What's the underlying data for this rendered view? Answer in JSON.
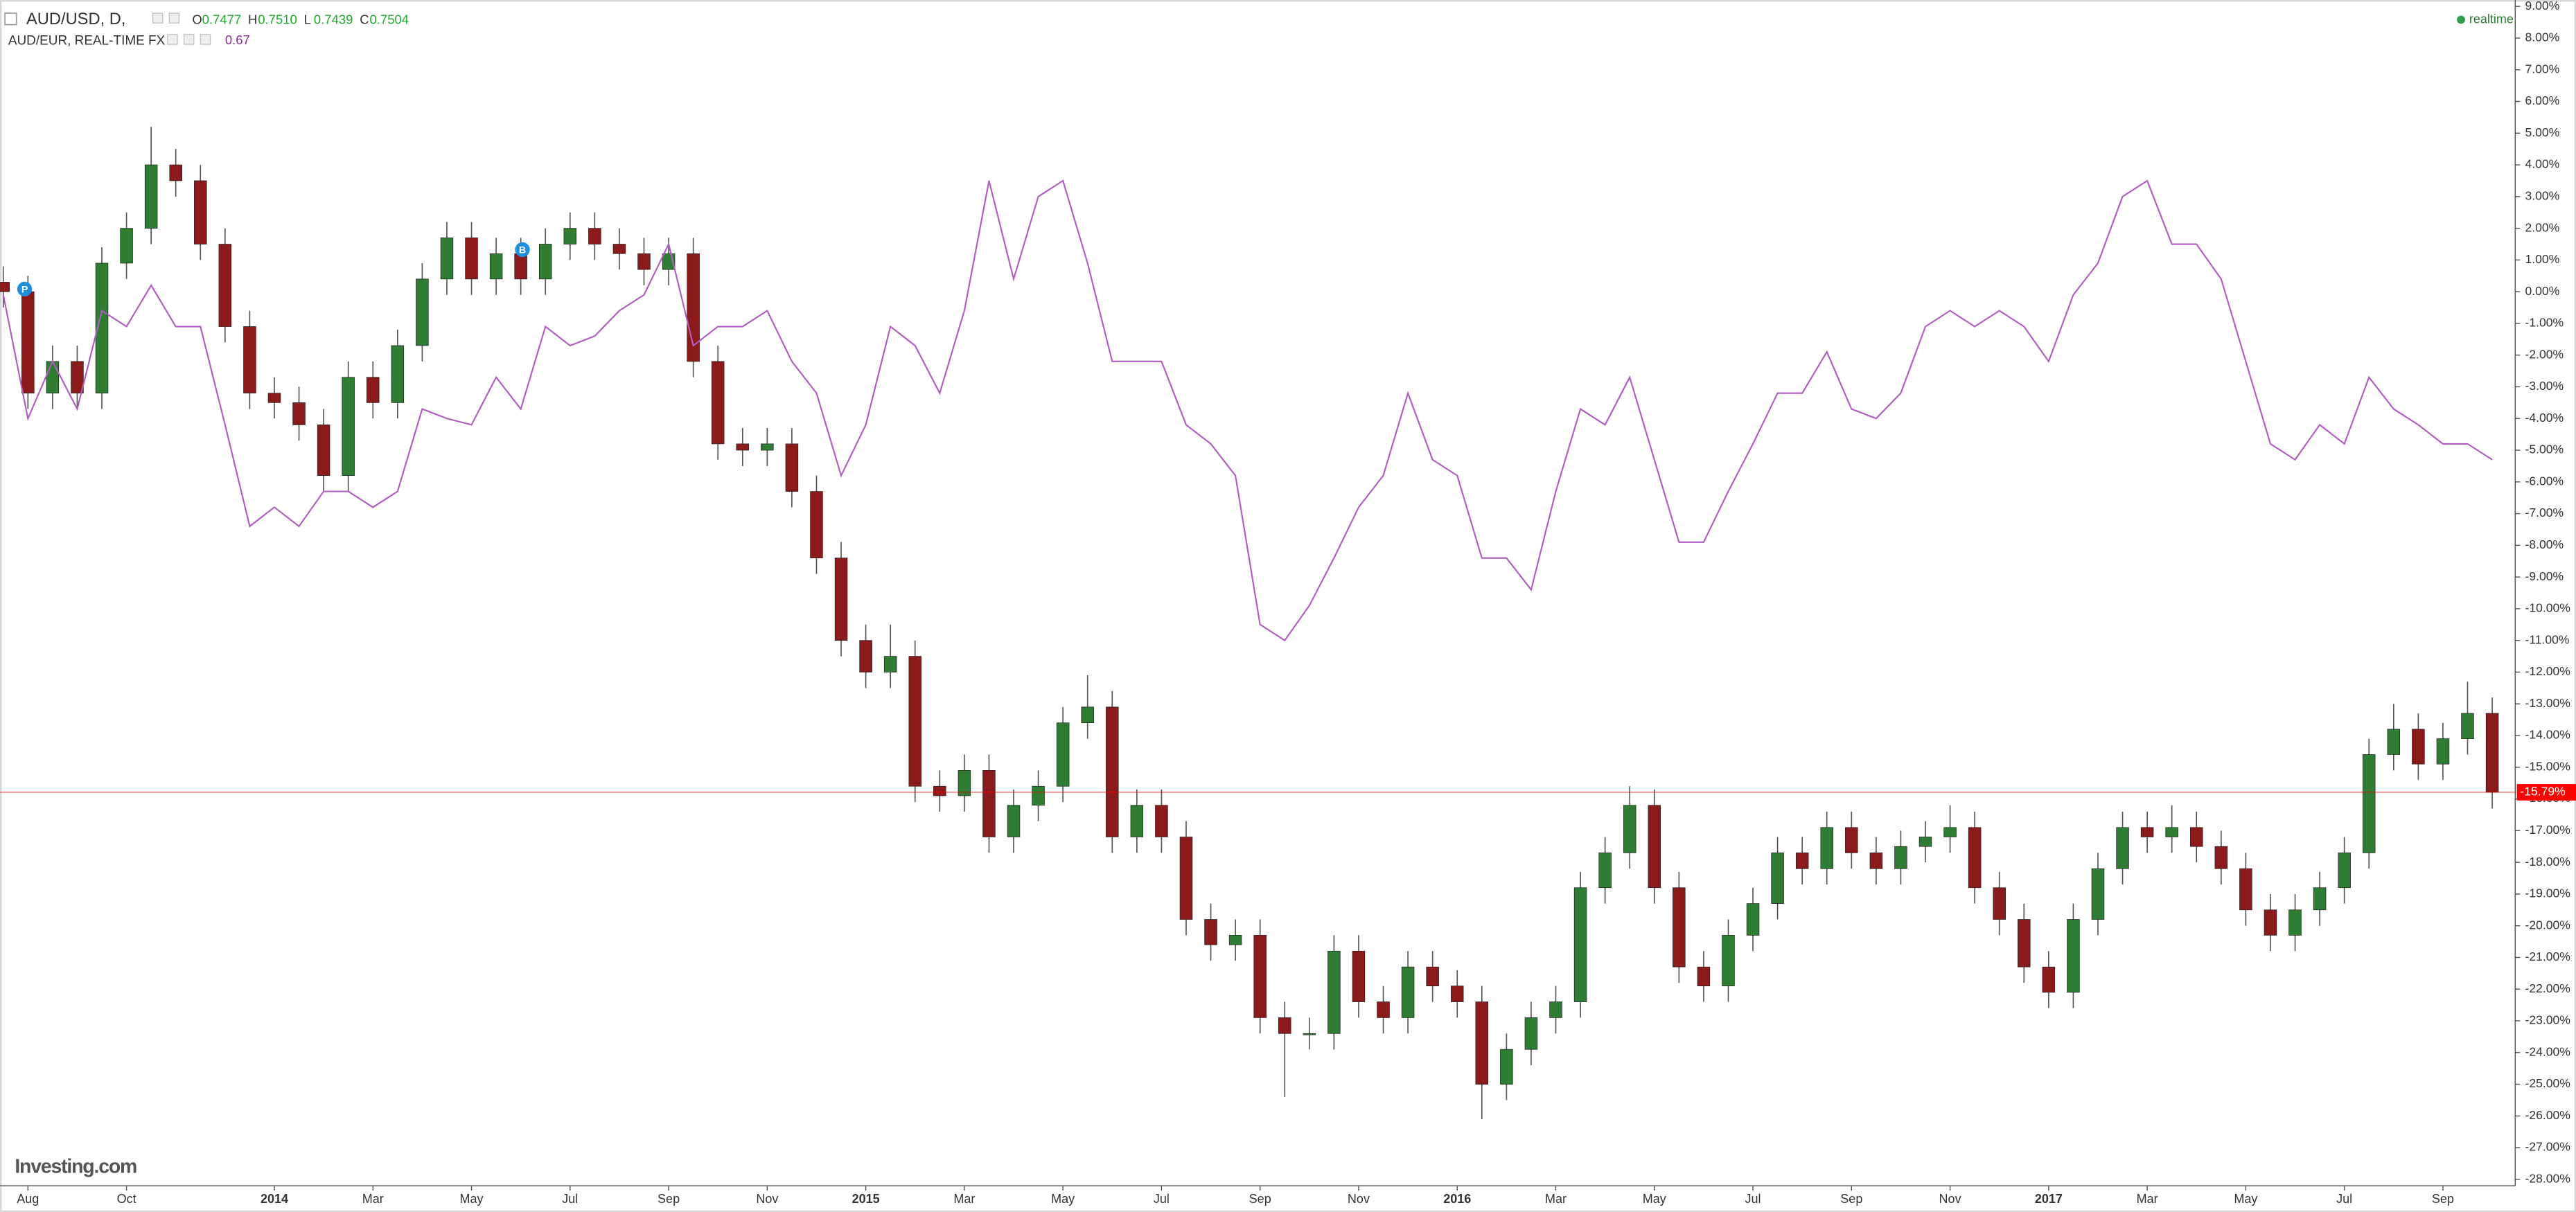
{
  "chart_data": {
    "type": "candlestick",
    "symbol_title": "AUD/USD, D,",
    "quote": [
      {
        "key": "O",
        "price": 0.7477
      },
      {
        "key": "H",
        "price": {
          "value": 0.751,
          "label": "0.7510"
        }
      },
      {
        "key": "L",
        "price": 0.7439
      },
      {
        "key": "C",
        "price": 0.7504
      }
    ],
    "status": "realtime",
    "brand": "Investing.com",
    "markers": [
      "P",
      "B"
    ],
    "categories": [
      null,
      "Aug",
      null,
      null,
      null,
      "Oct",
      null,
      null,
      null,
      null,
      null,
      "2014",
      null,
      null,
      null,
      "Mar",
      null,
      null,
      null,
      "May",
      null,
      null,
      null,
      "Jul",
      null,
      null,
      null,
      "Sep",
      null,
      null,
      null,
      "Nov",
      null,
      null,
      null,
      "2015",
      null,
      null,
      null,
      "Mar",
      null,
      null,
      null,
      "May",
      null,
      null,
      null,
      "Jul",
      null,
      null,
      null,
      "Sep",
      null,
      null,
      null,
      "Nov",
      null,
      null,
      null,
      "2016",
      null,
      null,
      null,
      "Mar",
      null,
      null,
      null,
      "May",
      null,
      null,
      null,
      "Jul",
      null,
      null,
      null,
      "Sep",
      null,
      null,
      null,
      "Nov",
      null,
      null,
      null,
      "2017",
      null,
      null,
      null,
      "Mar",
      null,
      null,
      null,
      "May",
      null,
      null,
      null,
      "Jul",
      null,
      null,
      null,
      "Sep",
      null,
      null
    ],
    "series": [
      {
        "name": "AUD/USD",
        "type": "candlestick",
        "up_color": "#2e7d32",
        "down_color": "#8b1a1a",
        "wick_color": "#555555",
        "open": [
          0.3,
          0,
          -3.2,
          -2.2,
          -3.2,
          0.9,
          2.0,
          4.0,
          3.5,
          1.5,
          -1.1,
          -3.2,
          -3.5,
          -4.2,
          -5.8,
          -2.7,
          -3.5,
          -1.7,
          0.4,
          1.7,
          0.4,
          1.2,
          0.4,
          1.5,
          2.0,
          1.5,
          1.2,
          0.7,
          1.2,
          -2.2,
          -4.8,
          -5.0,
          -4.8,
          -6.3,
          -8.4,
          -11.0,
          -12.0,
          -11.5,
          -15.6,
          -15.9,
          -15.1,
          -17.2,
          -16.2,
          -15.6,
          -13.6,
          -13.1,
          -17.2,
          -16.2,
          -17.2,
          -19.8,
          -20.6,
          -20.3,
          -22.9,
          -23.4,
          -23.4,
          -20.8,
          -22.4,
          -22.9,
          -21.3,
          -21.9,
          -22.4,
          -25.0,
          -23.9,
          -22.9,
          -22.4,
          -18.8,
          -17.7,
          -16.2,
          -18.8,
          -21.3,
          -21.9,
          -20.3,
          -19.3,
          -17.7,
          -18.2,
          -16.9,
          -17.7,
          -18.2,
          -17.5,
          -17.2,
          -16.9,
          -18.8,
          -19.8,
          -21.3,
          -22.1,
          -19.8,
          -18.2,
          -16.9,
          -17.2,
          -16.9,
          -17.5,
          -18.2,
          -19.5,
          -20.3,
          -19.5,
          -18.8,
          -17.7,
          -14.6,
          -13.8,
          -14.9,
          -14.1,
          -13.3
        ],
        "high": [
          0.8,
          0.5,
          -1.7,
          -1.7,
          1.4,
          2.5,
          5.2,
          4.5,
          4.0,
          2.0,
          -0.6,
          -2.7,
          -3.0,
          -3.7,
          -2.2,
          -2.2,
          -1.2,
          0.9,
          2.2,
          2.2,
          1.7,
          1.7,
          2.0,
          2.5,
          2.5,
          2.0,
          1.7,
          1.7,
          1.7,
          -1.7,
          -4.3,
          -4.3,
          -4.3,
          -5.8,
          -7.9,
          -10.5,
          -10.5,
          -11.0,
          -15.1,
          -14.6,
          -14.6,
          -15.7,
          -15.1,
          -13.1,
          -12.1,
          -12.6,
          -15.7,
          -15.7,
          -16.7,
          -19.3,
          -19.8,
          -19.8,
          -22.4,
          -22.9,
          -20.3,
          -20.3,
          -21.9,
          -20.8,
          -20.8,
          -21.4,
          -21.9,
          -23.4,
          -22.4,
          -21.9,
          -18.3,
          -17.2,
          -15.6,
          -15.7,
          -18.3,
          -20.8,
          -19.8,
          -18.8,
          -17.2,
          -17.2,
          -16.4,
          -16.4,
          -17.2,
          -17.0,
          -16.7,
          -16.2,
          -16.4,
          -18.3,
          -19.3,
          -20.8,
          -19.3,
          -17.7,
          -16.4,
          -16.4,
          -16.2,
          -16.4,
          -17.0,
          -17.7,
          -19.0,
          -19.0,
          -18.3,
          -17.2,
          -14.1,
          -13.0,
          -13.3,
          -13.6,
          -12.3,
          -12.8
        ],
        "low": [
          -0.5,
          -3.7,
          -3.7,
          -3.7,
          -3.7,
          0.4,
          1.5,
          3.0,
          1.0,
          -1.6,
          -3.7,
          -4.0,
          -4.7,
          -6.3,
          -6.3,
          -4.0,
          -4.0,
          -2.2,
          -0.1,
          -0.1,
          -0.1,
          -0.1,
          -0.1,
          1.0,
          1.0,
          0.7,
          0.2,
          0.2,
          -2.7,
          -5.3,
          -5.5,
          -5.5,
          -6.8,
          -8.9,
          -11.5,
          -12.5,
          -12.5,
          -16.1,
          -16.4,
          -16.4,
          -17.7,
          -17.7,
          -16.7,
          -16.1,
          -14.1,
          -17.7,
          -17.7,
          -17.7,
          -20.3,
          -21.1,
          -21.1,
          -23.4,
          -25.4,
          -23.9,
          -23.9,
          -22.9,
          -23.4,
          -23.4,
          -22.4,
          -22.9,
          -26.1,
          -25.5,
          -24.4,
          -23.4,
          -22.9,
          -19.3,
          -18.2,
          -19.3,
          -21.8,
          -22.4,
          -22.4,
          -20.8,
          -19.8,
          -18.7,
          -18.7,
          -18.2,
          -18.7,
          -18.7,
          -18.0,
          -17.7,
          -19.3,
          -20.3,
          -21.8,
          -22.6,
          -22.6,
          -20.3,
          -18.7,
          -17.7,
          -17.7,
          -18.0,
          -18.7,
          -20.0,
          -20.8,
          -20.8,
          -20.0,
          -19.3,
          -18.2,
          -15.1,
          -15.4,
          -15.4,
          -14.6,
          -16.3
        ],
        "close": [
          0,
          -3.2,
          -2.2,
          -3.2,
          0.9,
          2.0,
          4.0,
          3.5,
          1.5,
          -1.1,
          -3.2,
          -3.5,
          -4.2,
          -5.8,
          -2.7,
          -3.5,
          -1.7,
          0.4,
          1.7,
          0.4,
          1.2,
          0.4,
          1.5,
          2.0,
          1.5,
          1.2,
          0.7,
          1.2,
          -2.2,
          -4.8,
          -5.0,
          -4.8,
          -6.3,
          -8.4,
          -11.0,
          -12.0,
          -11.5,
          -15.6,
          -15.9,
          -15.1,
          -17.2,
          -16.2,
          -15.6,
          -13.6,
          -13.1,
          -17.2,
          -16.2,
          -17.2,
          -19.8,
          -20.6,
          -20.3,
          -22.9,
          -23.4,
          -23.4,
          -20.8,
          -22.4,
          -22.9,
          -21.3,
          -21.9,
          -22.4,
          -25.0,
          -23.9,
          -22.9,
          -22.4,
          -18.8,
          -17.7,
          -16.2,
          -18.8,
          -21.3,
          -21.9,
          -20.3,
          -19.3,
          -17.7,
          -18.2,
          -16.9,
          -17.7,
          -18.2,
          -17.5,
          -17.2,
          -16.9,
          -18.8,
          -19.8,
          -21.3,
          -22.1,
          -19.8,
          -18.2,
          -16.9,
          -17.2,
          -16.9,
          -17.5,
          -18.2,
          -19.5,
          -20.3,
          -19.5,
          -18.8,
          -17.7,
          -14.6,
          -13.8,
          -14.9,
          -14.1,
          -13.3,
          -15.79
        ]
      },
      {
        "name": "AUD/EUR, REAL-TIME FX",
        "type": "line",
        "color": "#b05cc0",
        "last_value": 0.67,
        "values": [
          -0.1,
          -4.0,
          -2.2,
          -3.7,
          -0.6,
          -1.1,
          0.2,
          -1.1,
          -1.1,
          -4.2,
          -7.4,
          -6.8,
          -7.4,
          -6.3,
          -6.3,
          -6.8,
          -6.3,
          -3.7,
          -4.0,
          -4.2,
          -2.7,
          -3.7,
          -1.1,
          -1.7,
          -1.4,
          -0.6,
          -0.1,
          1.5,
          -1.7,
          -1.1,
          -1.1,
          -0.6,
          -2.2,
          -3.2,
          -5.8,
          -4.2,
          -1.1,
          -1.7,
          -3.2,
          -0.6,
          3.5,
          0.4,
          3.0,
          3.5,
          0.9,
          -2.2,
          -2.2,
          -2.2,
          -4.2,
          -4.8,
          -5.8,
          -10.5,
          -11.0,
          -9.9,
          -8.4,
          -6.8,
          -5.8,
          -3.2,
          -5.3,
          -5.8,
          -8.4,
          -8.4,
          -9.4,
          -6.3,
          -3.7,
          -4.2,
          -2.7,
          -5.3,
          -7.9,
          -7.9,
          -6.3,
          -4.8,
          -3.2,
          -3.2,
          -1.9,
          -3.7,
          -4.0,
          -3.2,
          -1.1,
          -0.6,
          -1.1,
          -0.6,
          -1.1,
          -2.2,
          -0.1,
          0.9,
          3.0,
          3.5,
          1.5,
          1.5,
          0.4,
          -2.2,
          -4.8,
          -5.3,
          -4.2,
          -4.8,
          -2.7,
          -3.7,
          -4.2,
          -4.8,
          -4.8,
          -5.3
        ]
      }
    ],
    "current_value": {
      "value": -15.79,
      "label": "-15.79%"
    },
    "current_color": "#ff0000",
    "ylim": [
      -28.2,
      9.2
    ],
    "yticks": [
      {
        "value": 9,
        "label": "9.00%"
      },
      {
        "value": 8,
        "label": "8.00%"
      },
      {
        "value": 7,
        "label": "7.00%"
      },
      {
        "value": 6,
        "label": "6.00%"
      },
      {
        "value": 5,
        "label": "5.00%"
      },
      {
        "value": 4,
        "label": "4.00%"
      },
      {
        "value": 3,
        "label": "3.00%"
      },
      {
        "value": 2,
        "label": "2.00%"
      },
      {
        "value": 1,
        "label": "1.00%"
      },
      {
        "value": 0,
        "label": "0.00%"
      },
      {
        "value": -1,
        "label": "-1.00%"
      },
      {
        "value": -2,
        "label": "-2.00%"
      },
      {
        "value": -3,
        "label": "-3.00%"
      },
      {
        "value": -4,
        "label": "-4.00%"
      },
      {
        "value": -5,
        "label": "-5.00%"
      },
      {
        "value": -6,
        "label": "-6.00%"
      },
      {
        "value": -7,
        "label": "-7.00%"
      },
      {
        "value": -8,
        "label": "-8.00%"
      },
      {
        "value": -9,
        "label": "-9.00%"
      },
      {
        "value": -10,
        "label": "-10.00%"
      },
      {
        "value": -11,
        "label": "-11.00%"
      },
      {
        "value": -12,
        "label": "-12.00%"
      },
      {
        "value": -13,
        "label": "-13.00%"
      },
      {
        "value": -14,
        "label": "-14.00%"
      },
      {
        "value": -15,
        "label": "-15.00%"
      },
      {
        "value": -16,
        "label": "-16.00%"
      },
      {
        "value": -17,
        "label": "-17.00%"
      },
      {
        "value": -18,
        "label": "-18.00%"
      },
      {
        "value": -19,
        "label": "-19.00%"
      },
      {
        "value": -20,
        "label": "-20.00%"
      },
      {
        "value": -21,
        "label": "-21.00%"
      },
      {
        "value": -22,
        "label": "-22.00%"
      },
      {
        "value": -23,
        "label": "-23.00%"
      },
      {
        "value": -24,
        "label": "-24.00%"
      },
      {
        "value": -25,
        "label": "-25.00%"
      },
      {
        "value": -26,
        "label": "-26.00%"
      },
      {
        "value": -27,
        "label": "-27.00%"
      },
      {
        "value": -28,
        "label": "-28.00%"
      }
    ],
    "grid": false
  }
}
